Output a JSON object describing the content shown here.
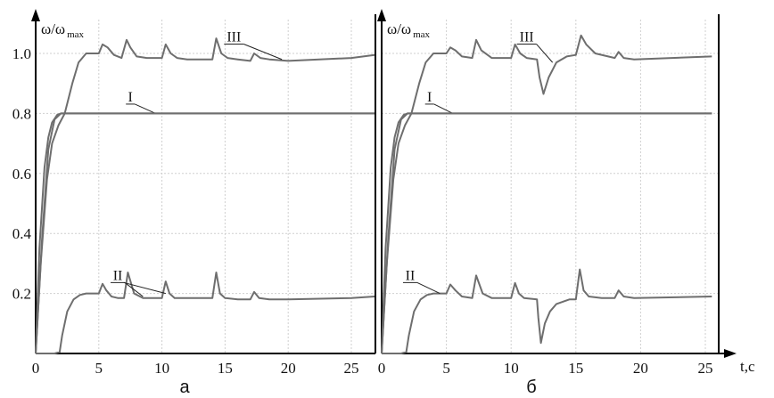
{
  "chart_data": [
    {
      "type": "line",
      "caption": "а",
      "ylabel_main": "ω/ω",
      "ylabel_sub": "max",
      "xlabel": "",
      "xlim": [
        0,
        29
      ],
      "ylim": [
        0,
        1.06
      ],
      "xticks": [
        "0",
        "5",
        "10",
        "15",
        "20",
        "25"
      ],
      "yticks": [
        "0.2",
        "0.4",
        "0.6",
        "0.8",
        "1.0"
      ],
      "grid": true,
      "series": [
        {
          "name": "I",
          "label_at": [
            7.5,
            0.84
          ],
          "label_end": [
            9.5,
            0.8
          ],
          "x": [
            0,
            0.5,
            1,
            1.5,
            2,
            2.5,
            29
          ],
          "y": [
            0,
            0.38,
            0.68,
            0.78,
            0.8,
            0.8,
            0.8
          ]
        },
        {
          "name": "I",
          "label_at": null,
          "label_end": null,
          "x": [
            0,
            0.3,
            0.7,
            1,
            1.3,
            1.7,
            2,
            29
          ],
          "y": [
            0,
            0.35,
            0.62,
            0.72,
            0.77,
            0.795,
            0.8,
            0.8
          ]
        },
        {
          "name": "II",
          "label_at": [
            6.5,
            0.245
          ],
          "label_end": [
            8.5,
            0.19
          ],
          "x": [
            0,
            1.5,
            1.9,
            2.1,
            2.5,
            3,
            3.5,
            4,
            5,
            5.3,
            5.6,
            6,
            6.5,
            7,
            7.3,
            7.8,
            8.5,
            9,
            10,
            10.3,
            10.6,
            11,
            12,
            14,
            14.3,
            14.6,
            15,
            16,
            17,
            17.3,
            17.7,
            18.5,
            20,
            25,
            29
          ],
          "y": [
            0,
            0,
            0.005,
            0.06,
            0.14,
            0.18,
            0.195,
            0.2,
            0.2,
            0.232,
            0.21,
            0.19,
            0.185,
            0.185,
            0.27,
            0.2,
            0.185,
            0.185,
            0.185,
            0.24,
            0.2,
            0.185,
            0.185,
            0.185,
            0.27,
            0.2,
            0.185,
            0.18,
            0.18,
            0.205,
            0.185,
            0.18,
            0.18,
            0.185,
            0.19
          ]
        },
        {
          "name": "III",
          "label_at": [
            15.7,
            1.04
          ],
          "label_end": [
            19.5,
            0.98
          ],
          "x": [
            0,
            0.4,
            0.9,
            1.3,
            1.8,
            2.3,
            2.9,
            3.4,
            4,
            5,
            5.3,
            5.7,
            6.2,
            6.8,
            7.2,
            7.5,
            8,
            8.8,
            10,
            10.3,
            10.7,
            11.2,
            12,
            14,
            14.3,
            14.7,
            15.2,
            16,
            17,
            17.3,
            17.8,
            18.5,
            20,
            25,
            29
          ],
          "y": [
            0,
            0.3,
            0.58,
            0.7,
            0.76,
            0.8,
            0.9,
            0.97,
            1.0,
            1.0,
            1.03,
            1.02,
            0.995,
            0.985,
            1.045,
            1.02,
            0.99,
            0.985,
            0.985,
            1.03,
            1.0,
            0.985,
            0.98,
            0.98,
            1.05,
            1.0,
            0.985,
            0.98,
            0.975,
            1.0,
            0.985,
            0.98,
            0.975,
            0.985,
            0.995
          ]
        }
      ]
    },
    {
      "type": "line",
      "caption": "б",
      "ylabel_main": "ω/ω",
      "ylabel_sub": "max",
      "xlabel": "t,c",
      "xlim": [
        0,
        25.5
      ],
      "ylim": [
        0,
        1.06
      ],
      "xticks": [
        "0",
        "5",
        "10",
        "15",
        "20",
        "25"
      ],
      "yticks": [],
      "grid": true,
      "series": [
        {
          "name": "I",
          "label_at": [
            3.7,
            0.84
          ],
          "label_end": [
            5.5,
            0.8
          ],
          "x": [
            0,
            0.5,
            1,
            1.5,
            2,
            2.5,
            25.5
          ],
          "y": [
            0,
            0.38,
            0.68,
            0.78,
            0.8,
            0.8,
            0.8
          ]
        },
        {
          "name": "I",
          "label_at": null,
          "label_end": null,
          "x": [
            0,
            0.3,
            0.7,
            1,
            1.3,
            1.7,
            2,
            25.5
          ],
          "y": [
            0,
            0.35,
            0.62,
            0.72,
            0.77,
            0.795,
            0.8,
            0.8
          ]
        },
        {
          "name": "II",
          "label_at": [
            2.2,
            0.245
          ],
          "label_end": [
            4.5,
            0.2
          ],
          "x": [
            0,
            1.5,
            1.9,
            2.1,
            2.5,
            3,
            3.5,
            4,
            5,
            5.3,
            5.7,
            6.2,
            7,
            7.3,
            7.8,
            8.5,
            10,
            10.3,
            10.6,
            11,
            12,
            12.1,
            12.3,
            12.6,
            13,
            13.5,
            14.5,
            15,
            15.3,
            15.6,
            16,
            17,
            18,
            18.3,
            18.7,
            19.5,
            25.5
          ],
          "y": [
            0,
            0,
            0.005,
            0.06,
            0.14,
            0.18,
            0.195,
            0.2,
            0.2,
            0.23,
            0.21,
            0.19,
            0.185,
            0.26,
            0.2,
            0.185,
            0.185,
            0.235,
            0.2,
            0.185,
            0.18,
            0.12,
            0.035,
            0.1,
            0.14,
            0.165,
            0.18,
            0.18,
            0.28,
            0.21,
            0.19,
            0.185,
            0.185,
            0.21,
            0.19,
            0.185,
            0.19
          ]
        },
        {
          "name": "III",
          "label_at": [
            11.2,
            1.04
          ],
          "label_end": [
            13.2,
            0.97
          ],
          "x": [
            0,
            0.4,
            0.9,
            1.3,
            1.8,
            2.3,
            2.9,
            3.4,
            4,
            5,
            5.3,
            5.7,
            6.2,
            7,
            7.3,
            7.7,
            8.5,
            10,
            10.3,
            10.7,
            11.2,
            12,
            12.2,
            12.5,
            12.9,
            13.5,
            14.3,
            15,
            15.4,
            15.8,
            16.5,
            18,
            18.3,
            18.7,
            19.5,
            25.5
          ],
          "y": [
            0,
            0.3,
            0.58,
            0.7,
            0.76,
            0.8,
            0.9,
            0.97,
            1.0,
            1.0,
            1.02,
            1.01,
            0.99,
            0.985,
            1.045,
            1.01,
            0.985,
            0.985,
            1.03,
            1.0,
            0.985,
            0.98,
            0.92,
            0.865,
            0.92,
            0.97,
            0.99,
            0.995,
            1.06,
            1.03,
            1.0,
            0.985,
            1.005,
            0.985,
            0.98,
            0.99
          ]
        }
      ]
    }
  ]
}
